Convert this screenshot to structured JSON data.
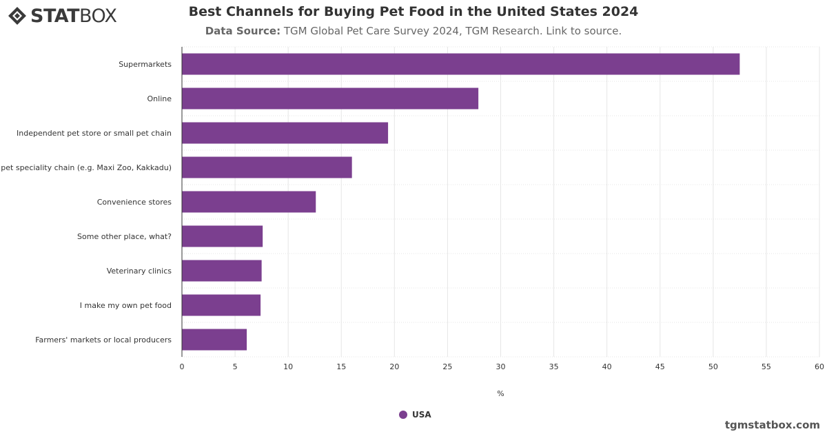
{
  "brand": {
    "logo_text_bold": "STAT",
    "logo_text_light": "BOX",
    "icon": "statbox-diamond-logo"
  },
  "header": {
    "title": "Best Channels for Buying Pet Food in the United States 2024",
    "source_label": "Data Source:",
    "source_text": "TGM Global Pet Care Survey 2024, TGM Research. Link to source."
  },
  "footer": {
    "site": "tgmstatbox.com"
  },
  "colors": {
    "bar": "#7b3f8f",
    "grid": "#e6e6e6",
    "axis": "#333333"
  },
  "chart_data": {
    "type": "bar",
    "orientation": "horizontal",
    "categories": [
      "Supermarkets",
      "Online",
      "Independent pet store or small pet chain",
      "pet speciality chain (e.g. Maxi Zoo, Kakkadu)",
      "Convenience stores",
      "Some other place, what?",
      "Veterinary clinics",
      "I make my own pet food",
      "Farmers' markets or local producers"
    ],
    "series": [
      {
        "name": "USA",
        "values": [
          52.5,
          27.9,
          19.4,
          16.0,
          12.6,
          7.6,
          7.5,
          7.4,
          6.1
        ]
      }
    ],
    "x_ticks": [
      "0",
      "5",
      "10",
      "15",
      "20",
      "25",
      "30",
      "35",
      "40",
      "45",
      "50",
      "55",
      "60"
    ],
    "xlim": [
      0,
      60
    ],
    "xlabel": "%",
    "grid": true,
    "legend_position": "bottom-center"
  }
}
